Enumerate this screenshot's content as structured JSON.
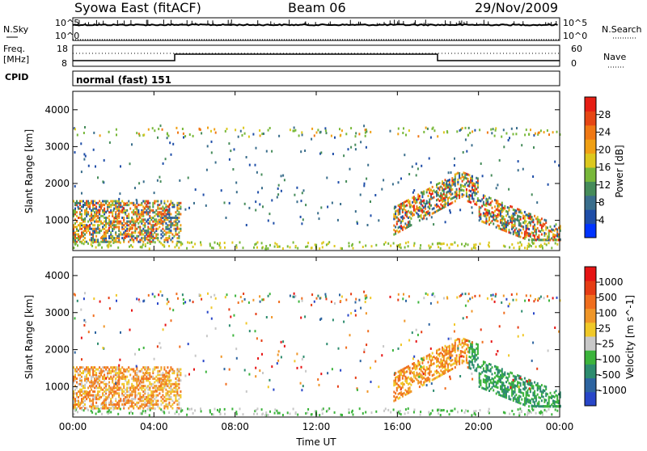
{
  "header": {
    "station": "Syowa East (fitACF)",
    "beam": "Beam 06",
    "date": "29/Nov/2009"
  },
  "strip_labels": {
    "nsky": "N.Sky",
    "nsearch": "N.Search",
    "freq_line1": "Freq.",
    "freq_line2": "[MHz]",
    "nave": "Nave",
    "cpid": "CPID",
    "cpid_value": "normal (fast) 151"
  },
  "noise_axis": {
    "left_top": "10^5",
    "left_bottom": "10^0",
    "right_top": "10^5",
    "right_bottom": "10^0"
  },
  "freq_axis": {
    "left_top": "18",
    "left_bottom": "8",
    "right_top": "60",
    "right_bottom": "0"
  },
  "chart_data": [
    {
      "type": "heatmap",
      "title": "",
      "xlabel": "Time UT",
      "ylabel": "Slant Range [km]",
      "xlim": [
        0,
        24
      ],
      "ylim": [
        180,
        4500
      ],
      "x_ticks": [
        "00:00",
        "04:00",
        "08:00",
        "12:00",
        "16:00",
        "20:00",
        "00:00"
      ],
      "y_ticks": [
        "1000",
        "2000",
        "3000",
        "4000"
      ],
      "colorbar": {
        "label": "Power [dB]",
        "ticks": [
          "4",
          "8",
          "12",
          "16",
          "20",
          "24",
          "28"
        ],
        "colors": [
          "#0033ff",
          "#1f4ea8",
          "#3a6e8c",
          "#468c5a",
          "#78b83a",
          "#dcc81e",
          "#f0a014",
          "#f07814",
          "#e64614",
          "#e61e14"
        ]
      }
    },
    {
      "type": "heatmap",
      "title": "",
      "xlabel": "Time UT",
      "ylabel": "Slant Range [km]",
      "xlim": [
        0,
        24
      ],
      "ylim": [
        180,
        4500
      ],
      "x_ticks": [
        "00:00",
        "04:00",
        "08:00",
        "12:00",
        "16:00",
        "20:00",
        "00:00"
      ],
      "y_ticks": [
        "1000",
        "2000",
        "3000",
        "4000"
      ],
      "colorbar": {
        "label": "Velocity [m s^-1]",
        "ticks": [
          "1000",
          "500",
          "100",
          "25",
          "-25",
          "-100",
          "-500",
          "-1000"
        ],
        "colors": [
          "#2846c8",
          "#2d64a0",
          "#2d8c6e",
          "#3cb43c",
          "#c8c8c8",
          "#f0c828",
          "#f09628",
          "#f06e1e",
          "#e63c14",
          "#e61414"
        ]
      }
    }
  ]
}
